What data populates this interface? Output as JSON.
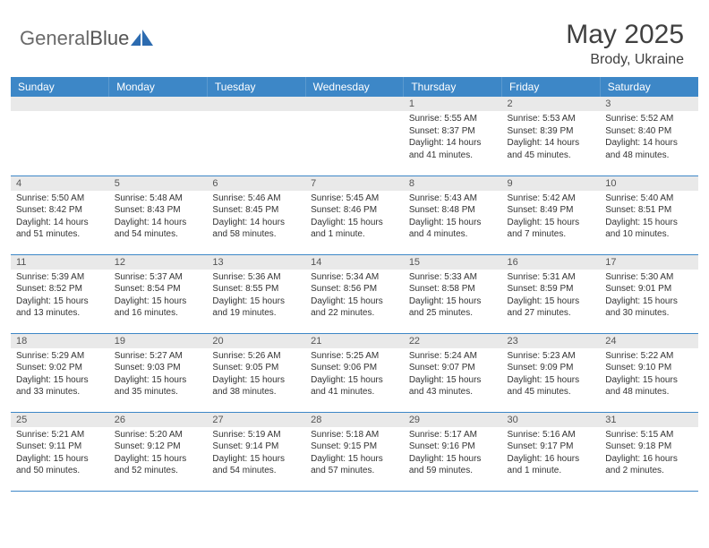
{
  "brand": {
    "part1": "General",
    "part2": "Blue"
  },
  "title": "May 2025",
  "location": "Brody, Ukraine",
  "colors": {
    "header_bg": "#3d87c7",
    "header_text": "#ffffff",
    "daynum_bg": "#e9e9e9",
    "border": "#3d87c7",
    "text": "#333333",
    "title_color": "#404040",
    "logo_gray": "#6a6a6a",
    "logo_blue": "#2c6bb0"
  },
  "day_headers": [
    "Sunday",
    "Monday",
    "Tuesday",
    "Wednesday",
    "Thursday",
    "Friday",
    "Saturday"
  ],
  "weeks": [
    [
      {
        "n": "",
        "sr": "",
        "ss": "",
        "dl": ""
      },
      {
        "n": "",
        "sr": "",
        "ss": "",
        "dl": ""
      },
      {
        "n": "",
        "sr": "",
        "ss": "",
        "dl": ""
      },
      {
        "n": "",
        "sr": "",
        "ss": "",
        "dl": ""
      },
      {
        "n": "1",
        "sr": "Sunrise: 5:55 AM",
        "ss": "Sunset: 8:37 PM",
        "dl": "Daylight: 14 hours and 41 minutes."
      },
      {
        "n": "2",
        "sr": "Sunrise: 5:53 AM",
        "ss": "Sunset: 8:39 PM",
        "dl": "Daylight: 14 hours and 45 minutes."
      },
      {
        "n": "3",
        "sr": "Sunrise: 5:52 AM",
        "ss": "Sunset: 8:40 PM",
        "dl": "Daylight: 14 hours and 48 minutes."
      }
    ],
    [
      {
        "n": "4",
        "sr": "Sunrise: 5:50 AM",
        "ss": "Sunset: 8:42 PM",
        "dl": "Daylight: 14 hours and 51 minutes."
      },
      {
        "n": "5",
        "sr": "Sunrise: 5:48 AM",
        "ss": "Sunset: 8:43 PM",
        "dl": "Daylight: 14 hours and 54 minutes."
      },
      {
        "n": "6",
        "sr": "Sunrise: 5:46 AM",
        "ss": "Sunset: 8:45 PM",
        "dl": "Daylight: 14 hours and 58 minutes."
      },
      {
        "n": "7",
        "sr": "Sunrise: 5:45 AM",
        "ss": "Sunset: 8:46 PM",
        "dl": "Daylight: 15 hours and 1 minute."
      },
      {
        "n": "8",
        "sr": "Sunrise: 5:43 AM",
        "ss": "Sunset: 8:48 PM",
        "dl": "Daylight: 15 hours and 4 minutes."
      },
      {
        "n": "9",
        "sr": "Sunrise: 5:42 AM",
        "ss": "Sunset: 8:49 PM",
        "dl": "Daylight: 15 hours and 7 minutes."
      },
      {
        "n": "10",
        "sr": "Sunrise: 5:40 AM",
        "ss": "Sunset: 8:51 PM",
        "dl": "Daylight: 15 hours and 10 minutes."
      }
    ],
    [
      {
        "n": "11",
        "sr": "Sunrise: 5:39 AM",
        "ss": "Sunset: 8:52 PM",
        "dl": "Daylight: 15 hours and 13 minutes."
      },
      {
        "n": "12",
        "sr": "Sunrise: 5:37 AM",
        "ss": "Sunset: 8:54 PM",
        "dl": "Daylight: 15 hours and 16 minutes."
      },
      {
        "n": "13",
        "sr": "Sunrise: 5:36 AM",
        "ss": "Sunset: 8:55 PM",
        "dl": "Daylight: 15 hours and 19 minutes."
      },
      {
        "n": "14",
        "sr": "Sunrise: 5:34 AM",
        "ss": "Sunset: 8:56 PM",
        "dl": "Daylight: 15 hours and 22 minutes."
      },
      {
        "n": "15",
        "sr": "Sunrise: 5:33 AM",
        "ss": "Sunset: 8:58 PM",
        "dl": "Daylight: 15 hours and 25 minutes."
      },
      {
        "n": "16",
        "sr": "Sunrise: 5:31 AM",
        "ss": "Sunset: 8:59 PM",
        "dl": "Daylight: 15 hours and 27 minutes."
      },
      {
        "n": "17",
        "sr": "Sunrise: 5:30 AM",
        "ss": "Sunset: 9:01 PM",
        "dl": "Daylight: 15 hours and 30 minutes."
      }
    ],
    [
      {
        "n": "18",
        "sr": "Sunrise: 5:29 AM",
        "ss": "Sunset: 9:02 PM",
        "dl": "Daylight: 15 hours and 33 minutes."
      },
      {
        "n": "19",
        "sr": "Sunrise: 5:27 AM",
        "ss": "Sunset: 9:03 PM",
        "dl": "Daylight: 15 hours and 35 minutes."
      },
      {
        "n": "20",
        "sr": "Sunrise: 5:26 AM",
        "ss": "Sunset: 9:05 PM",
        "dl": "Daylight: 15 hours and 38 minutes."
      },
      {
        "n": "21",
        "sr": "Sunrise: 5:25 AM",
        "ss": "Sunset: 9:06 PM",
        "dl": "Daylight: 15 hours and 41 minutes."
      },
      {
        "n": "22",
        "sr": "Sunrise: 5:24 AM",
        "ss": "Sunset: 9:07 PM",
        "dl": "Daylight: 15 hours and 43 minutes."
      },
      {
        "n": "23",
        "sr": "Sunrise: 5:23 AM",
        "ss": "Sunset: 9:09 PM",
        "dl": "Daylight: 15 hours and 45 minutes."
      },
      {
        "n": "24",
        "sr": "Sunrise: 5:22 AM",
        "ss": "Sunset: 9:10 PM",
        "dl": "Daylight: 15 hours and 48 minutes."
      }
    ],
    [
      {
        "n": "25",
        "sr": "Sunrise: 5:21 AM",
        "ss": "Sunset: 9:11 PM",
        "dl": "Daylight: 15 hours and 50 minutes."
      },
      {
        "n": "26",
        "sr": "Sunrise: 5:20 AM",
        "ss": "Sunset: 9:12 PM",
        "dl": "Daylight: 15 hours and 52 minutes."
      },
      {
        "n": "27",
        "sr": "Sunrise: 5:19 AM",
        "ss": "Sunset: 9:14 PM",
        "dl": "Daylight: 15 hours and 54 minutes."
      },
      {
        "n": "28",
        "sr": "Sunrise: 5:18 AM",
        "ss": "Sunset: 9:15 PM",
        "dl": "Daylight: 15 hours and 57 minutes."
      },
      {
        "n": "29",
        "sr": "Sunrise: 5:17 AM",
        "ss": "Sunset: 9:16 PM",
        "dl": "Daylight: 15 hours and 59 minutes."
      },
      {
        "n": "30",
        "sr": "Sunrise: 5:16 AM",
        "ss": "Sunset: 9:17 PM",
        "dl": "Daylight: 16 hours and 1 minute."
      },
      {
        "n": "31",
        "sr": "Sunrise: 5:15 AM",
        "ss": "Sunset: 9:18 PM",
        "dl": "Daylight: 16 hours and 2 minutes."
      }
    ]
  ]
}
